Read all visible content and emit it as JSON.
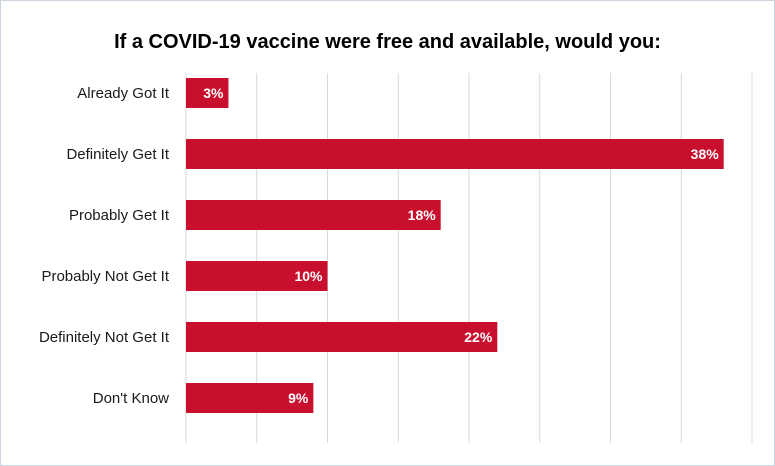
{
  "chart_data": {
    "type": "bar",
    "orientation": "horizontal",
    "title": "If a COVID-19 vaccine were free and available, would you:",
    "categories": [
      "Already Got It",
      "Definitely Get It",
      "Probably Get It",
      "Probably Not Get It",
      "Definitely Not Get It",
      "Don't Know"
    ],
    "values": [
      3,
      38,
      18,
      10,
      22,
      9
    ],
    "value_labels": [
      "3%",
      "38%",
      "18%",
      "10%",
      "22%",
      "9%"
    ],
    "xlim": [
      0,
      40
    ],
    "grid": true,
    "bar_color": "#c8102e",
    "grid_color": "#d9d9d9"
  }
}
